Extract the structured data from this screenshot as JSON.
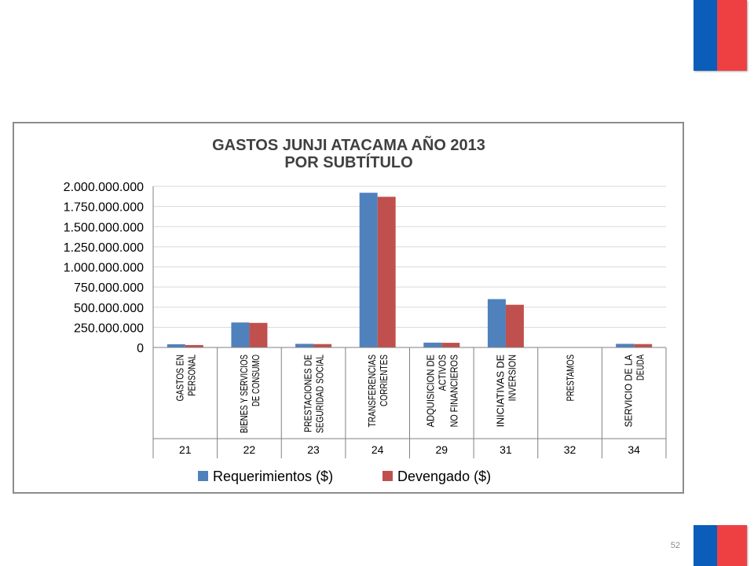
{
  "slide": {
    "number": "52"
  },
  "colors": {
    "series1": "#4f81bd",
    "series2": "#c0504d",
    "flag_blue": "#0a5db8",
    "flag_red": "#ee3f43"
  },
  "chart_data": {
    "type": "bar",
    "title": "GASTOS JUNJI ATACAMA AÑO 2013",
    "subtitle": "POR SUBTÍTULO",
    "ylim": [
      0,
      2000000000
    ],
    "yticks": [
      "0",
      "250.000.000",
      "500.000.000",
      "750.000.000",
      "1.000.000.000",
      "1.250.000.000",
      "1.500.000.000",
      "1.750.000.000",
      "2.000.000.000"
    ],
    "grid": true,
    "legend_position": "bottom",
    "categories": [
      {
        "label": [
          "GASTOS EN",
          "PERSONAL"
        ],
        "code": "21"
      },
      {
        "label": [
          "BIENES Y SERVICIOS",
          "DE CONSUMO"
        ],
        "code": "22"
      },
      {
        "label": [
          "PRESTACIONES DE",
          "SEGURIDAD SOCIAL"
        ],
        "code": "23"
      },
      {
        "label": [
          "TRANSFERENCIAS",
          "CORRIENTES"
        ],
        "code": "24"
      },
      {
        "label": [
          "ADQUISICION DE",
          "ACTIVOS",
          "NO FINANCIEROS"
        ],
        "code": "29"
      },
      {
        "label": [
          "INICIATIVAS DE",
          "INVERSION"
        ],
        "code": "31"
      },
      {
        "label": [
          "PRESTAMOS"
        ],
        "code": "32"
      },
      {
        "label": [
          "SERVICIO DE LA",
          "DEUDA"
        ],
        "code": "34"
      }
    ],
    "series": [
      {
        "name": "Requerimientos ($)",
        "values": [
          40000000,
          310000000,
          45000000,
          1920000000,
          60000000,
          600000000,
          5000000,
          45000000
        ]
      },
      {
        "name": "Devengado ($)",
        "values": [
          30000000,
          305000000,
          42000000,
          1870000000,
          58000000,
          530000000,
          4000000,
          42000000
        ]
      }
    ]
  }
}
